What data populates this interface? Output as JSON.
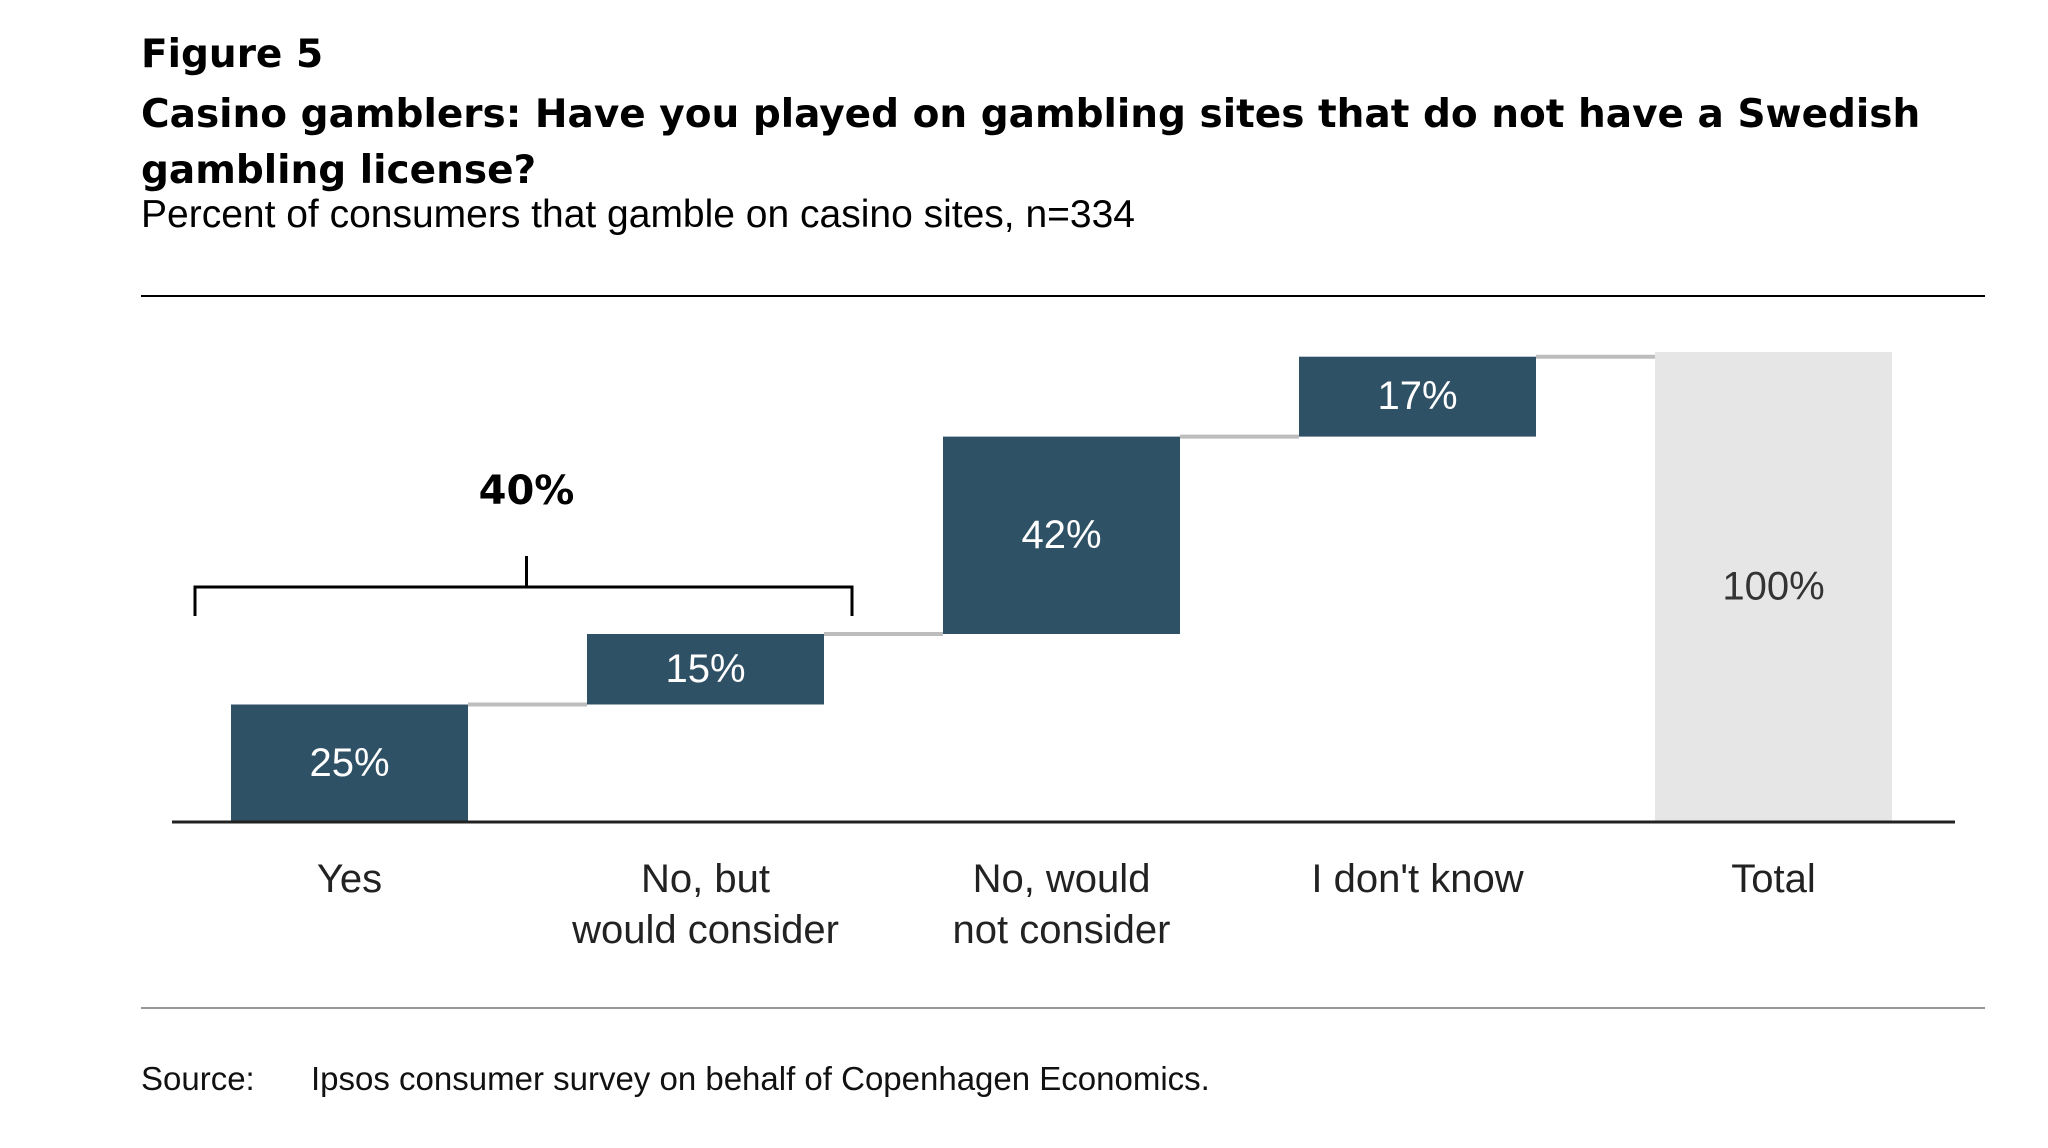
{
  "figure_label": "Figure 5",
  "chart_data": {
    "type": "waterfall",
    "title": "Casino gamblers: Have you played on gambling sites that do not have a Swedish gambling license?",
    "subtitle": "Percent of consumers that gamble on casino sites, n=334",
    "categories": [
      [
        "Yes"
      ],
      [
        "No, but",
        "would consider"
      ],
      [
        "No, would",
        "not consider"
      ],
      [
        "I don't know"
      ],
      [
        "Total"
      ]
    ],
    "values": [
      25,
      15,
      42,
      17,
      100
    ],
    "labels": [
      "25%",
      "15%",
      "42%",
      "17%",
      "100%"
    ],
    "total_index": 4,
    "ylim": [
      0,
      100
    ],
    "bracket": {
      "label": "40%",
      "from_index": 0,
      "to_index": 1
    },
    "colors": {
      "bar": "#2f5166",
      "total": "#e6e6e6",
      "connector": "#bdbdbd",
      "axis": "#222222"
    }
  },
  "source": {
    "label": "Source:",
    "text": "Ipsos consumer survey on behalf of Copenhagen Economics."
  }
}
